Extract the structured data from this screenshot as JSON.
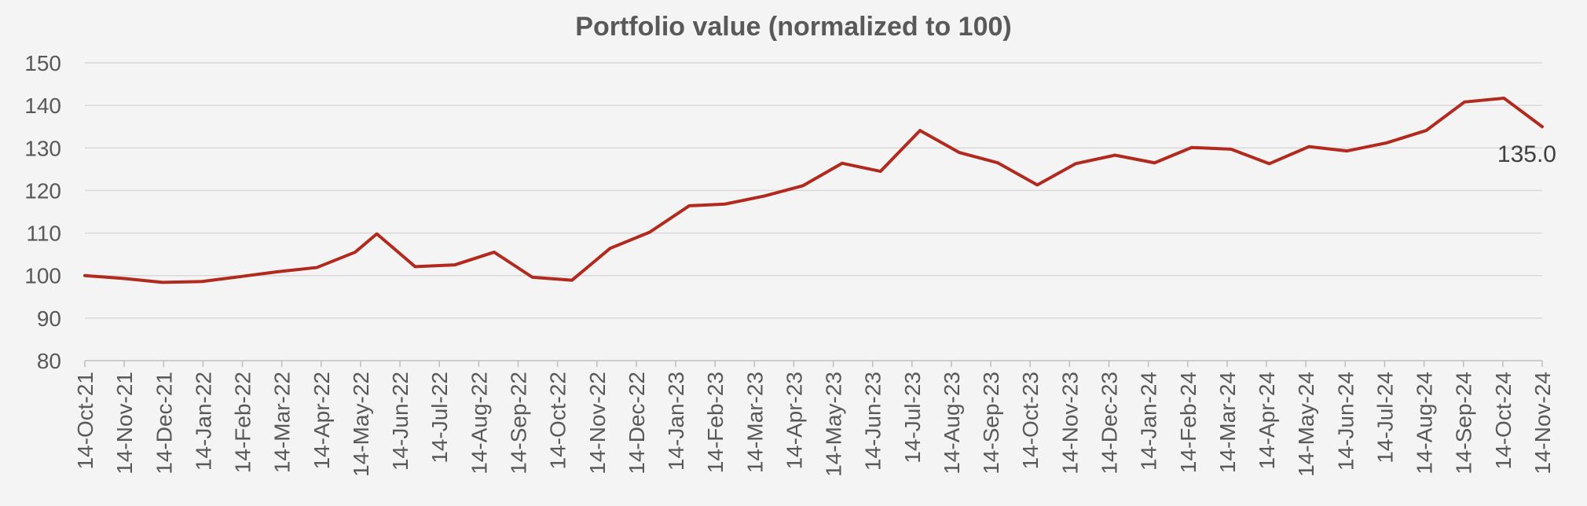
{
  "chart_data": {
    "type": "line",
    "title": "Portfolio value (normalized to 100)",
    "xlabel": "",
    "ylabel": "",
    "ylim": [
      80,
      150
    ],
    "yticks": [
      80,
      90,
      100,
      110,
      120,
      130,
      140,
      150
    ],
    "grid": true,
    "legend": "none",
    "line_color": "#b22a1e",
    "x_tick_labels": [
      "14-Oct-21",
      "14-Nov-21",
      "14-Dec-21",
      "14-Jan-22",
      "14-Feb-22",
      "14-Mar-22",
      "14-Apr-22",
      "14-May-22",
      "14-Jun-22",
      "14-Jul-22",
      "14-Aug-22",
      "14-Sep-22",
      "14-Oct-22",
      "14-Nov-22",
      "14-Dec-22",
      "14-Jan-23",
      "14-Feb-23",
      "14-Mar-23",
      "14-Apr-23",
      "14-May-23",
      "14-Jun-23",
      "14-Jul-23",
      "14-Aug-23",
      "14-Sep-23",
      "14-Oct-23",
      "14-Nov-23",
      "14-Dec-23",
      "14-Jan-24",
      "14-Feb-24",
      "14-Mar-24",
      "14-Apr-24",
      "14-May-24",
      "14-Jun-24",
      "14-Jul-24",
      "14-Aug-24",
      "14-Sep-24",
      "14-Oct-24",
      "14-Nov-24"
    ],
    "series": [
      {
        "x": [
          "2021-10-14",
          "2021-11-14",
          "2021-12-14",
          "2022-01-14",
          "2022-02-14",
          "2022-03-14",
          "2022-04-14",
          "2022-05-14",
          "2022-05-31",
          "2022-06-30",
          "2022-07-31",
          "2022-08-31",
          "2022-09-30",
          "2022-10-31",
          "2022-11-30",
          "2022-12-31",
          "2023-01-31",
          "2023-02-28",
          "2023-03-31",
          "2023-04-30",
          "2023-05-31",
          "2023-06-30",
          "2023-07-31",
          "2023-08-31",
          "2023-09-30",
          "2023-10-31",
          "2023-11-30",
          "2023-12-31",
          "2024-01-31",
          "2024-02-29",
          "2024-03-31",
          "2024-04-30",
          "2024-05-31",
          "2024-06-30",
          "2024-07-31",
          "2024-08-31",
          "2024-09-30",
          "2024-10-31",
          "2024-11-30"
        ],
        "values": [
          100.0,
          99.3,
          98.4,
          98.6,
          99.8,
          100.9,
          101.9,
          105.5,
          109.8,
          102.1,
          102.5,
          105.5,
          99.6,
          98.9,
          106.4,
          110.2,
          116.4,
          116.8,
          118.7,
          121.1,
          126.4,
          124.5,
          134.1,
          128.9,
          126.5,
          121.3,
          126.3,
          128.3,
          126.5,
          130.1,
          129.7,
          126.3,
          130.3,
          129.3,
          131.2,
          134.1,
          140.8,
          141.7,
          135.0
        ]
      }
    ],
    "annotations": [
      "135.0"
    ]
  }
}
